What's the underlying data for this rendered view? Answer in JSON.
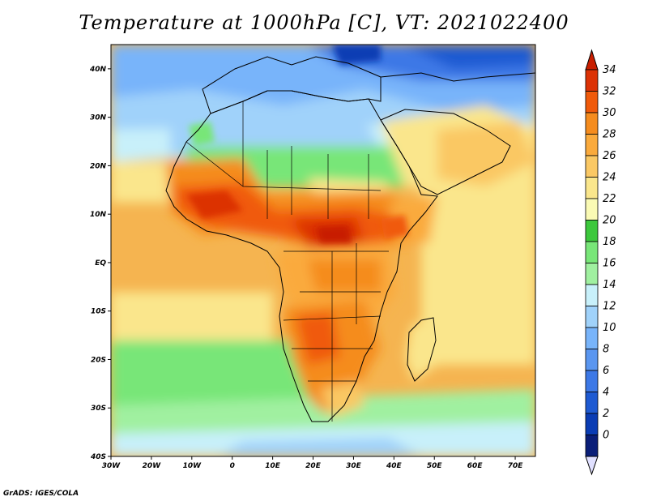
{
  "title": "Temperature at 1000hPa [C], VT: 2021022400",
  "credit": "GrADS: IGES/COLA",
  "map": {
    "lon_range": [
      -30,
      75
    ],
    "lat_range": [
      -40,
      45
    ],
    "lat_ticks": [
      {
        "value": 40,
        "label": "40N"
      },
      {
        "value": 30,
        "label": "30N"
      },
      {
        "value": 20,
        "label": "20N"
      },
      {
        "value": 10,
        "label": "10N"
      },
      {
        "value": 0,
        "label": "EQ"
      },
      {
        "value": -10,
        "label": "10S"
      },
      {
        "value": -20,
        "label": "20S"
      },
      {
        "value": -30,
        "label": "30S"
      },
      {
        "value": -40,
        "label": "40S"
      }
    ],
    "lon_ticks": [
      {
        "value": -30,
        "label": "30W"
      },
      {
        "value": -20,
        "label": "20W"
      },
      {
        "value": -10,
        "label": "10W"
      },
      {
        "value": 0,
        "label": "0"
      },
      {
        "value": 10,
        "label": "10E"
      },
      {
        "value": 20,
        "label": "20E"
      },
      {
        "value": 30,
        "label": "30E"
      },
      {
        "value": 40,
        "label": "40E"
      },
      {
        "value": 50,
        "label": "50E"
      },
      {
        "value": 60,
        "label": "60E"
      },
      {
        "value": 70,
        "label": "70E"
      }
    ]
  },
  "colorbar": {
    "labels": [
      "34",
      "32",
      "30",
      "28",
      "26",
      "24",
      "22",
      "20",
      "18",
      "16",
      "14",
      "12",
      "10",
      "8",
      "6",
      "4",
      "2",
      "0"
    ],
    "colors": [
      "#e0e0ff",
      "#0a1e78",
      "#0a3cb4",
      "#1e5ad2",
      "#3c78e6",
      "#5a96f0",
      "#78b4fa",
      "#a0d2fa",
      "#c8f0fa",
      "#a0f0a0",
      "#78e678",
      "#3cc83c",
      "#fafab4",
      "#fae68c",
      "#fac864",
      "#faaa3c",
      "#f58c1e",
      "#f05a0a",
      "#dc3205",
      "#c81e00"
    ]
  },
  "colors": {
    "ocean_warm": "#f5b450",
    "ocean_mid": "#fae68c",
    "ocean_cool": "#78e678",
    "cold": "#78b4fa",
    "hot": "#e64614"
  }
}
